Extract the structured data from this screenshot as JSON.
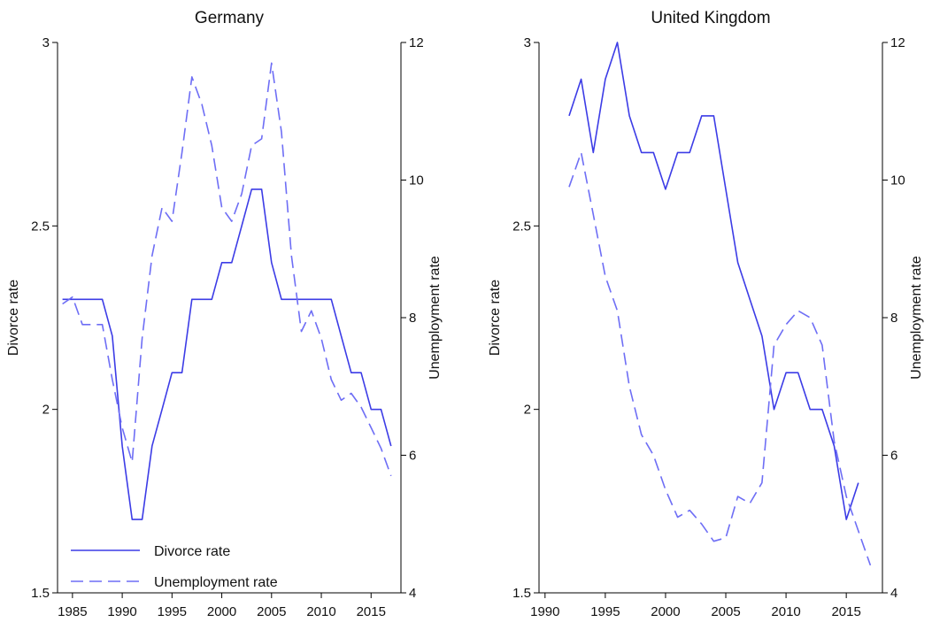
{
  "chart_data": [
    {
      "type": "line",
      "title": "Germany",
      "ylabel": "Divorce rate",
      "y2label": "Unemployment rate",
      "xlim": [
        1983.5,
        2018
      ],
      "ylim": [
        1.5,
        3
      ],
      "y2lim": [
        4,
        12
      ],
      "xticks": [
        1985,
        1990,
        1995,
        2000,
        2005,
        2010,
        2015
      ],
      "yticks": [
        1.5,
        2,
        2.5,
        3
      ],
      "y2ticks": [
        4,
        6,
        8,
        10,
        12
      ],
      "grid": false,
      "legend": "bottom-left",
      "series": [
        {
          "name": "Divorce rate",
          "axis": "left",
          "style": "solid",
          "color": "#3c3ce6",
          "x": [
            1984,
            1985,
            1986,
            1987,
            1988,
            1989,
            1990,
            1991,
            1992,
            1993,
            1994,
            1995,
            1996,
            1997,
            1998,
            1999,
            2000,
            2001,
            2002,
            2003,
            2004,
            2005,
            2006,
            2007,
            2008,
            2009,
            2010,
            2011,
            2012,
            2013,
            2014,
            2015,
            2016,
            2017
          ],
          "y": [
            2.3,
            2.3,
            2.3,
            2.3,
            2.3,
            2.2,
            1.9,
            1.7,
            1.7,
            1.9,
            2.0,
            2.1,
            2.1,
            2.3,
            2.3,
            2.3,
            2.4,
            2.4,
            2.5,
            2.6,
            2.6,
            2.4,
            2.3,
            2.3,
            2.3,
            2.3,
            2.3,
            2.3,
            2.2,
            2.1,
            2.1,
            2.0,
            2.0,
            1.9
          ]
        },
        {
          "name": "Unemployment rate",
          "axis": "right",
          "style": "dashed",
          "color": "#6e6ef5",
          "x": [
            1984,
            1985,
            1986,
            1987,
            1988,
            1989,
            1990,
            1991,
            1992,
            1993,
            1994,
            1995,
            1996,
            1997,
            1998,
            1999,
            2000,
            2001,
            2002,
            2003,
            2004,
            2005,
            2006,
            2007,
            2008,
            2009,
            2010,
            2011,
            2012,
            2013,
            2014,
            2015,
            2016,
            2017
          ],
          "y": [
            8.2,
            8.3,
            7.9,
            7.9,
            7.9,
            7.1,
            6.4,
            5.9,
            7.7,
            8.9,
            9.6,
            9.4,
            10.4,
            11.5,
            11.1,
            10.5,
            9.6,
            9.4,
            9.8,
            10.5,
            10.6,
            11.7,
            10.7,
            8.9,
            7.8,
            8.1,
            7.7,
            7.1,
            6.8,
            6.9,
            6.7,
            6.4,
            6.1,
            5.7
          ]
        }
      ]
    },
    {
      "type": "line",
      "title": "United Kingdom",
      "ylabel": "Divorce rate",
      "y2label": "Unemployment rate",
      "xlim": [
        1989.5,
        2018
      ],
      "ylim": [
        1.5,
        3
      ],
      "y2lim": [
        4,
        12
      ],
      "xticks": [
        1990,
        1995,
        2000,
        2005,
        2010,
        2015
      ],
      "yticks": [
        1.5,
        2,
        2.5,
        3
      ],
      "y2ticks": [
        4,
        6,
        8,
        10,
        12
      ],
      "grid": false,
      "series": [
        {
          "name": "Divorce rate",
          "axis": "left",
          "style": "solid",
          "color": "#3c3ce6",
          "x": [
            1992,
            1993,
            1994,
            1995,
            1996,
            1997,
            1998,
            1999,
            2000,
            2001,
            2002,
            2003,
            2004,
            2005,
            2006,
            2007,
            2008,
            2009,
            2010,
            2011,
            2012,
            2013,
            2014,
            2015,
            2016
          ],
          "y": [
            2.8,
            2.9,
            2.7,
            2.9,
            3.0,
            2.8,
            2.7,
            2.7,
            2.6,
            2.7,
            2.7,
            2.8,
            2.8,
            2.6,
            2.4,
            2.3,
            2.2,
            2.0,
            2.1,
            2.1,
            2.0,
            2.0,
            1.9,
            1.7,
            1.8
          ]
        },
        {
          "name": "Unemployment rate",
          "axis": "right",
          "style": "dashed",
          "color": "#6e6ef5",
          "x": [
            1992,
            1993,
            1994,
            1995,
            1996,
            1997,
            1998,
            1999,
            2000,
            2001,
            2002,
            2003,
            2004,
            2005,
            2006,
            2007,
            2008,
            2009,
            2010,
            2011,
            2012,
            2013,
            2014,
            2015,
            2016,
            2017
          ],
          "y": [
            9.9,
            10.4,
            9.5,
            8.6,
            8.1,
            7.0,
            6.3,
            6.0,
            5.5,
            5.1,
            5.2,
            5.0,
            4.75,
            4.8,
            5.4,
            5.3,
            5.6,
            7.6,
            7.9,
            8.1,
            8.0,
            7.6,
            6.2,
            5.4,
            4.9,
            4.4
          ]
        }
      ]
    }
  ]
}
